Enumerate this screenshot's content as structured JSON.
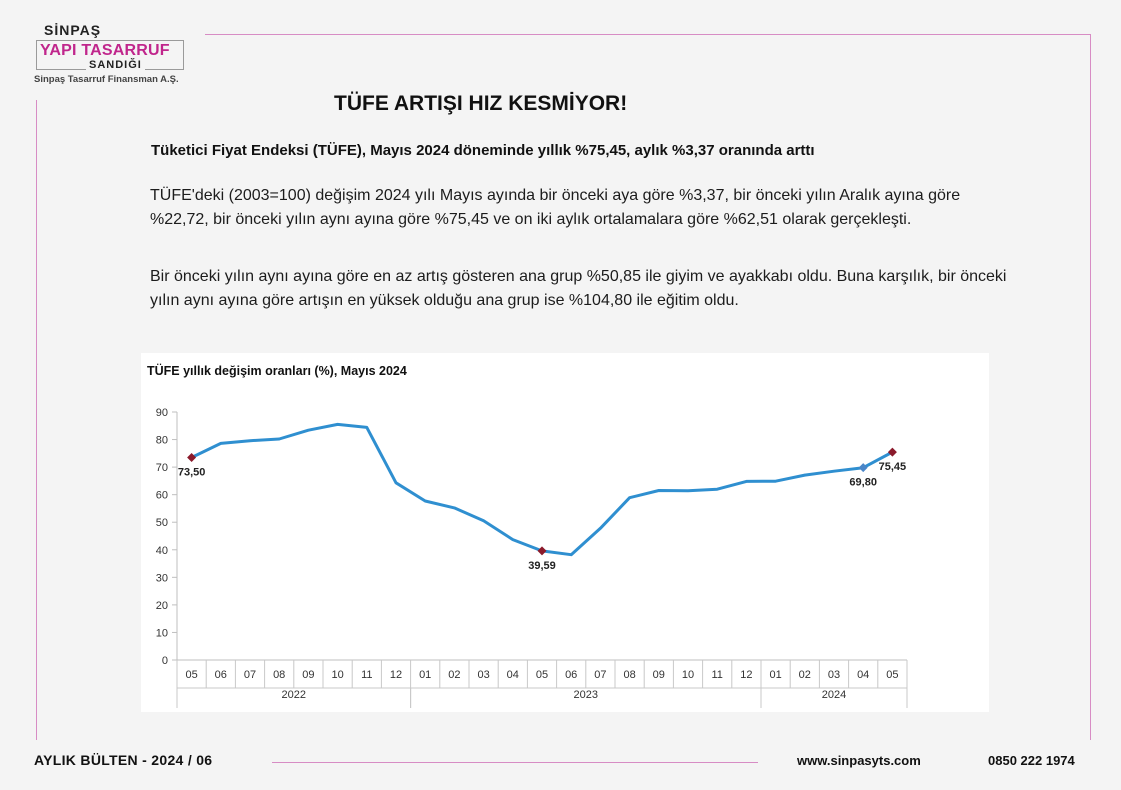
{
  "logo": {
    "line1": "SİNPAŞ",
    "line2": "YAPI TASARRUF",
    "line3": "SANDIĞI",
    "caption": "Sinpaş Tasarruf Finansman A.Ş."
  },
  "title": "TÜFE ARTIŞI HIZ KESMİYOR!",
  "subtitle": "Tüketici Fiyat Endeksi (TÜFE), Mayıs 2024 döneminde  yıllık %75,45, aylık %3,37 oranında arttı",
  "paragraphs": [
    "TÜFE'deki (2003=100) değişim 2024 yılı Mayıs ayında bir önceki aya göre %3,37, bir önceki yılın Aralık ayına göre %22,72, bir önceki yılın aynı ayına göre %75,45 ve on iki aylık ortalamalara göre %62,51 olarak gerçekleşti.",
    "Bir önceki yılın aynı ayına göre en az artış gösteren ana grup %50,85 ile giyim ve ayakkabı oldu. Buna karşılık, bir önceki yılın aynı ayına göre artışın en yüksek olduğu ana grup ise %104,80 ile eğitim oldu."
  ],
  "chart_data": {
    "type": "line",
    "title": "TÜFE yıllık değişim oranları (%), Mayıs 2024",
    "ylim": [
      0,
      90
    ],
    "yticks": [
      0,
      10,
      20,
      30,
      40,
      50,
      60,
      70,
      80,
      90
    ],
    "categories": [
      "05",
      "06",
      "07",
      "08",
      "09",
      "10",
      "11",
      "12",
      "01",
      "02",
      "03",
      "04",
      "05",
      "06",
      "07",
      "08",
      "09",
      "10",
      "11",
      "12",
      "01",
      "02",
      "03",
      "04",
      "05"
    ],
    "years": [
      {
        "label": "2022",
        "start": 0,
        "end": 7
      },
      {
        "label": "2023",
        "start": 8,
        "end": 19
      },
      {
        "label": "2024",
        "start": 20,
        "end": 24
      }
    ],
    "series": [
      {
        "name": "TÜFE yıllık değişim",
        "color": "#2f8fd0",
        "values": [
          73.5,
          78.6,
          79.6,
          80.2,
          83.4,
          85.5,
          84.4,
          64.3,
          57.7,
          55.2,
          50.5,
          43.7,
          39.59,
          38.2,
          47.8,
          58.9,
          61.5,
          61.4,
          62.0,
          64.8,
          64.9,
          67.1,
          68.5,
          69.8,
          75.45
        ]
      }
    ],
    "annotations": [
      {
        "index": 0,
        "label": "73,50",
        "marker": "#8b1a2b",
        "position": "below"
      },
      {
        "index": 12,
        "label": "39,59",
        "marker": "#8b1a2b",
        "position": "below"
      },
      {
        "index": 23,
        "label": "69,80",
        "marker": "#4a86c8",
        "position": "below"
      },
      {
        "index": 24,
        "label": "75,45",
        "marker": "#8b1a2b",
        "position": "below"
      }
    ]
  },
  "footer": {
    "bulletin": "AYLIK BÜLTEN  -  2024 / 06",
    "website": "www.sinpasyts.com",
    "phone": "0850 222 1974"
  }
}
